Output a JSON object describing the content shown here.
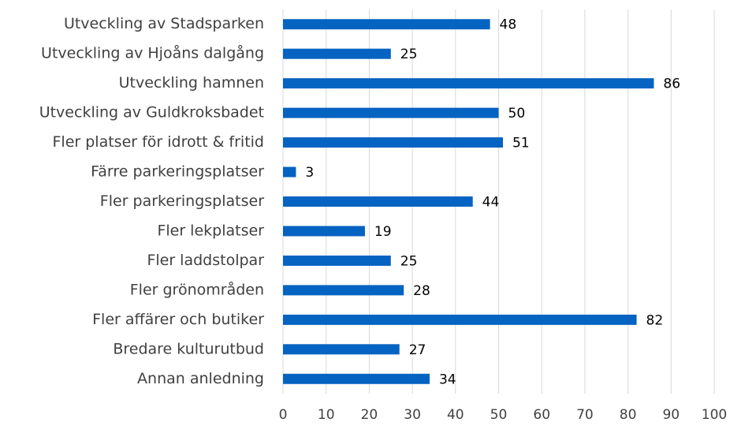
{
  "chart_data": {
    "type": "bar",
    "orientation": "horizontal",
    "categories": [
      "Utveckling av Stadsparken",
      "Utveckling av Hjoåns dalgång",
      "Utveckling hamnen",
      "Utveckling av Guldkroksbadet",
      "Fler platser för idrott & fritid",
      "Färre parkeringsplatser",
      "Fler parkeringsplatser",
      "Fler lekplatser",
      "Fler laddstolpar",
      "Fler grönområden",
      "Fler affärer och butiker",
      "Bredare kulturutbud",
      "Annan anledning"
    ],
    "values": [
      48,
      25,
      86,
      50,
      51,
      3,
      44,
      19,
      25,
      28,
      82,
      27,
      34
    ],
    "color": "#0563c1",
    "xlim": [
      0,
      100
    ],
    "xticks": [
      0,
      10,
      20,
      30,
      40,
      50,
      60,
      70,
      80,
      90,
      100
    ],
    "grid": true
  }
}
